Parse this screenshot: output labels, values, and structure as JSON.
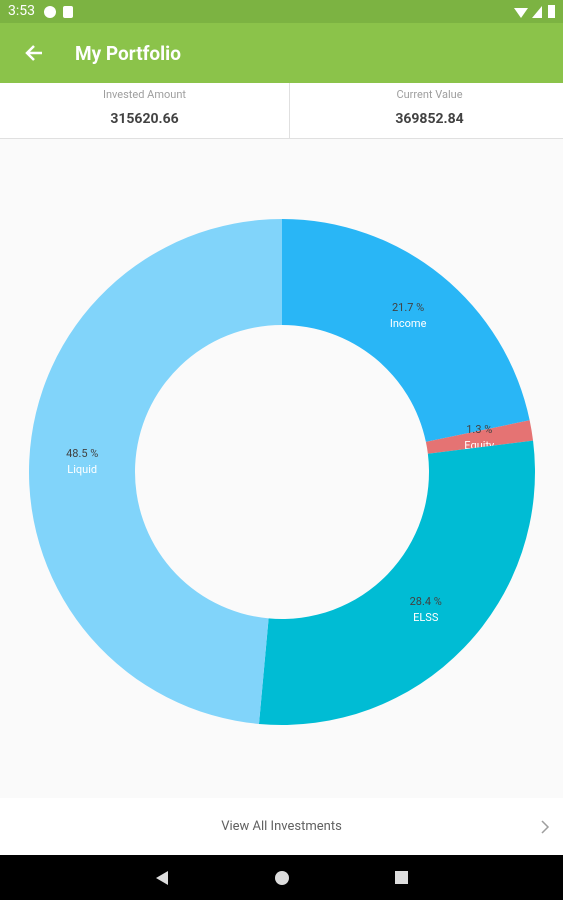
{
  "status_bar": {
    "time": "3:53"
  },
  "app_bar": {
    "title": "My Portfolio"
  },
  "summary": [
    {
      "label": "Invested Amount",
      "value": 315620.66
    },
    {
      "label": "Current Value",
      "value": 369852.84
    }
  ],
  "chart_data": {
    "type": "pie",
    "categories": [
      "Income",
      "Equity",
      "ELSS",
      "Liquid"
    ],
    "values": [
      21.7,
      1.3,
      28.4,
      48.5
    ],
    "value_labels": [
      "21.7 %",
      "1.3 %",
      "28.4 %",
      "48.5 %"
    ],
    "colors": [
      "#29b6f6",
      "#e57373",
      "#00bcd4",
      "#81d4fa"
    ]
  },
  "footer": {
    "link": "View All Investments"
  }
}
